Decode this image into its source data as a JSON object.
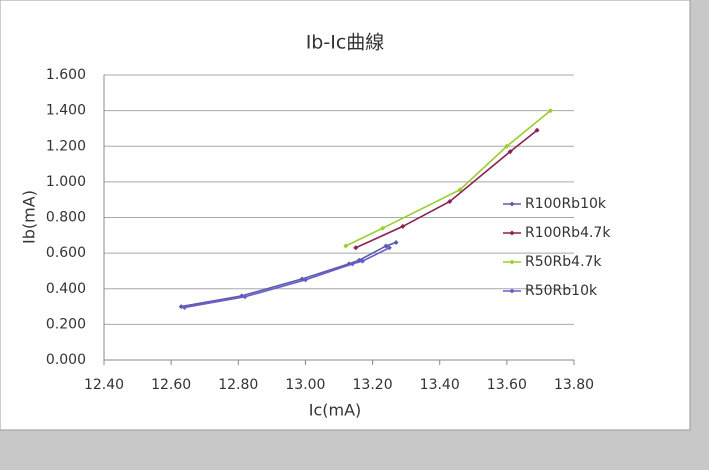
{
  "chart_data": {
    "type": "scatter-line",
    "title": "Ib-Ic曲線",
    "x_label": "Ic(mA)",
    "y_label": "Ib(mA)",
    "xlim": [
      12.4,
      13.8
    ],
    "xticks": [
      {
        "value": 12.4,
        "label": "12.40"
      },
      {
        "value": 12.6,
        "label": "12.60"
      },
      {
        "value": 12.8,
        "label": "12.80"
      },
      {
        "value": 13.0,
        "label": "13.00"
      },
      {
        "value": 13.2,
        "label": "13.20"
      },
      {
        "value": 13.4,
        "label": "13.40"
      },
      {
        "value": 13.6,
        "label": "13.60"
      },
      {
        "value": 13.8,
        "label": "13.80"
      }
    ],
    "ylim": [
      0,
      1.6
    ],
    "yticks": [
      {
        "value": 0,
        "label": "0.000"
      },
      {
        "value": 0.2,
        "label": "0.200"
      },
      {
        "value": 0.4,
        "label": "0.400"
      },
      {
        "value": 0.6,
        "label": "0.600"
      },
      {
        "value": 0.8,
        "label": "0.800"
      },
      {
        "value": 1.0,
        "label": "1.000"
      },
      {
        "value": 1.2,
        "label": "1.200"
      },
      {
        "value": 1.4,
        "label": "1.400"
      },
      {
        "value": 1.6,
        "label": "1.600"
      }
    ],
    "grid": true,
    "legend": "right",
    "series": [
      {
        "name": "R100Rb10k",
        "color": "#5b5ea6",
        "x": [
          12.63,
          12.81,
          12.99,
          13.13,
          13.16,
          13.24,
          13.27
        ],
        "values": [
          0.3,
          0.36,
          0.455,
          0.54,
          0.56,
          0.64,
          0.66
        ]
      },
      {
        "name": "R100Rb4.7k",
        "color": "#8b2252",
        "x": [
          13.15,
          13.29,
          13.43,
          13.61,
          13.69
        ],
        "values": [
          0.63,
          0.75,
          0.89,
          1.17,
          1.29
        ]
      },
      {
        "name": "R50Rb4.7k",
        "color": "#9acd32",
        "x": [
          13.12,
          13.23,
          13.46,
          13.6,
          13.73
        ],
        "values": [
          0.64,
          0.74,
          0.955,
          1.2,
          1.4
        ]
      },
      {
        "name": "R50Rb10k",
        "color": "#6a5acd",
        "x": [
          12.64,
          12.82,
          13.0,
          13.14,
          13.17,
          13.25
        ],
        "values": [
          0.295,
          0.355,
          0.45,
          0.54,
          0.555,
          0.63
        ]
      }
    ]
  }
}
